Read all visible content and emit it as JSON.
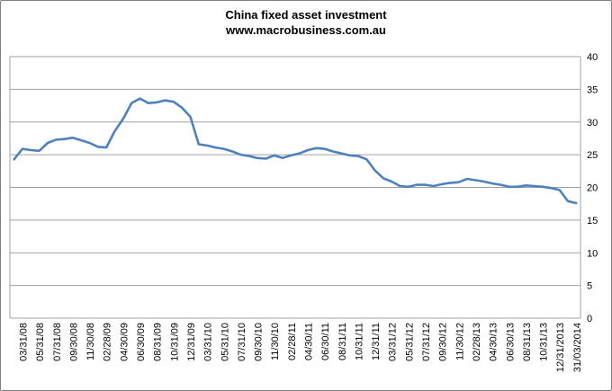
{
  "title": {
    "line1": "China fixed asset investment",
    "line2": "www.macrobusiness.com.au"
  },
  "chart_data": {
    "type": "line",
    "title": "China fixed asset investment",
    "subtitle": "www.macrobusiness.com.au",
    "xlabel": "",
    "ylabel": "",
    "ylim": [
      0,
      40
    ],
    "y_ticks": [
      0,
      5,
      10,
      15,
      20,
      25,
      30,
      35,
      40
    ],
    "y_axis_side": "right",
    "grid": "horizontal",
    "legend": "none",
    "x_labels": [
      "03/31/08",
      "05/31/08",
      "07/31/08",
      "09/30/08",
      "11/30/08",
      "02/28/09",
      "04/30/09",
      "06/30/09",
      "08/31/09",
      "10/31/09",
      "12/31/09",
      "03/31/10",
      "05/31/10",
      "07/31/10",
      "09/30/10",
      "11/30/10",
      "02/28/11",
      "04/30/11",
      "06/30/11",
      "08/31/11",
      "10/31/11",
      "12/31/11",
      "03/31/12",
      "05/31/12",
      "07/31/12",
      "09/30/12",
      "11/30/12",
      "02/28/13",
      "04/30/13",
      "06/30/13",
      "08/31/13",
      "10/31/13",
      "12/31/2013",
      "31/03/2014"
    ],
    "x_label_offset": 1,
    "x_label_step": 2,
    "series": [
      {
        "name": "China fixed asset investment",
        "color": "#4F81BD",
        "values": [
          24.3,
          25.9,
          25.7,
          25.6,
          26.8,
          27.3,
          27.4,
          27.6,
          27.2,
          26.8,
          26.2,
          26.1,
          28.6,
          30.5,
          32.9,
          33.6,
          32.9,
          33.0,
          33.3,
          33.1,
          32.2,
          30.8,
          26.6,
          26.4,
          26.1,
          25.9,
          25.5,
          25.0,
          24.8,
          24.5,
          24.4,
          24.9,
          24.5,
          24.9,
          25.2,
          25.7,
          26.0,
          25.9,
          25.5,
          25.2,
          24.9,
          24.8,
          24.3,
          22.6,
          21.4,
          20.9,
          20.2,
          20.1,
          20.4,
          20.4,
          20.2,
          20.5,
          20.7,
          20.8,
          21.3,
          21.1,
          20.9,
          20.6,
          20.4,
          20.1,
          20.1,
          20.3,
          20.2,
          20.1,
          19.9,
          19.6,
          17.9,
          17.6
        ]
      }
    ],
    "colors": {
      "line": "#4F81BD",
      "gridline": "#a0a0a0",
      "border": "#808080",
      "text": "#000000",
      "background": "#ffffff"
    }
  }
}
